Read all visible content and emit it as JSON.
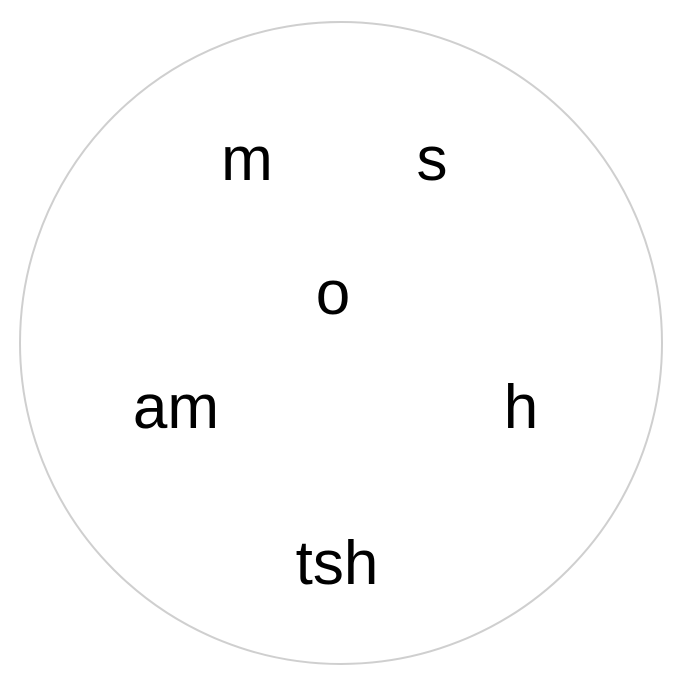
{
  "circle": {
    "border_color": "#cfcfcf",
    "fill_color": "#ffffff"
  },
  "syllables": {
    "top_left": "m",
    "top_right": "s",
    "center": "o",
    "left": "am",
    "right": "h",
    "bottom": "tsh"
  },
  "text_color": "#000000"
}
